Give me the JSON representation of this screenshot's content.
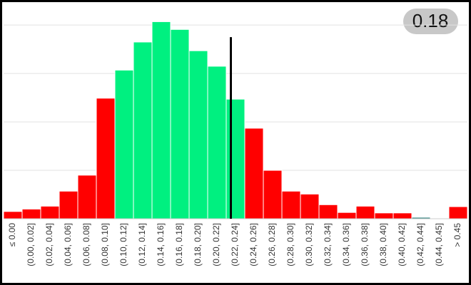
{
  "chart_data": {
    "type": "bar",
    "badge": "0.18",
    "categories": [
      "≤ 0.00",
      "(0.00, 0.02]",
      "(0.02, 0.04]",
      "(0.04, 0.06]",
      "(0.06, 0.08]",
      "(0.08, 0.10]",
      "(0.10, 0.12]",
      "(0.12, 0.14]",
      "(0.14, 0.16]",
      "(0.16, 0.18]",
      "(0.18, 0.20]",
      "(0.20, 0.22]",
      "(0.22, 0.24]",
      "(0.24, 0.26]",
      "(0.26, 0.28]",
      "(0.28, 0.30]",
      "(0.30, 0.32]",
      "(0.32, 0.34]",
      "(0.34, 0.36]",
      "(0.36, 0.38]",
      "(0.38, 0.40]",
      "(0.40, 0.42]",
      "(0.42, 0.44]",
      "(0.44, 0.45]",
      "> 0.45"
    ],
    "values": [
      0.15,
      0.2,
      0.26,
      0.57,
      0.9,
      2.49,
      3.07,
      3.65,
      4.07,
      3.91,
      3.47,
      3.15,
      2.47,
      1.87,
      1.0,
      0.57,
      0.51,
      0.29,
      0.13,
      0.26,
      0.12,
      0.12,
      0.03,
      0,
      0.25
    ],
    "colors": [
      "#ff0000",
      "#ff0000",
      "#ff0000",
      "#ff0000",
      "#ff0000",
      "#ff0000",
      "#00f080",
      "#00f080",
      "#00f080",
      "#00f080",
      "#00f080",
      "#00f080",
      "#00f080",
      "#ff0000",
      "#ff0000",
      "#ff0000",
      "#ff0000",
      "#ff0000",
      "#ff0000",
      "#ff0000",
      "#ff0000",
      "#ff0000",
      "#2a7f7a",
      "#ff0000",
      "#ff0000"
    ],
    "ylim": [
      0,
      4.4
    ],
    "gridlines": [
      1,
      2,
      3,
      4
    ],
    "marker": {
      "x": 12.25,
      "y": 3.75,
      "color": "#000000"
    }
  }
}
